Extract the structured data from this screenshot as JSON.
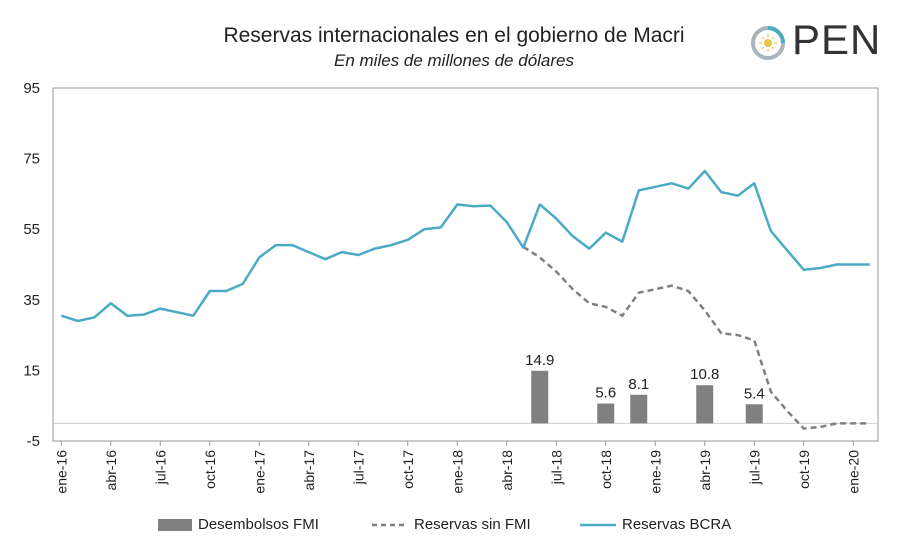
{
  "chart_data": {
    "type": "bar+line",
    "title": "Reservas internacionales en el gobierno de Macri",
    "subtitle": "En miles de millones de dólares",
    "ylim": [
      -5,
      95
    ],
    "yticks": [
      "-5",
      "15",
      "35",
      "55",
      "75",
      "95"
    ],
    "xticks": [
      "ene-16",
      "abr-16",
      "jul-16",
      "oct-16",
      "ene-17",
      "abr-17",
      "jul-17",
      "oct-17",
      "ene-18",
      "abr-18",
      "jul-18",
      "oct-18",
      "ene-19",
      "abr-19",
      "jul-19",
      "oct-19",
      "ene-20"
    ],
    "grid": "none",
    "legend_position": "bottom",
    "x_months": [
      "2016-01",
      "2016-02",
      "2016-03",
      "2016-04",
      "2016-05",
      "2016-06",
      "2016-07",
      "2016-08",
      "2016-09",
      "2016-10",
      "2016-11",
      "2016-12",
      "2017-01",
      "2017-02",
      "2017-03",
      "2017-04",
      "2017-05",
      "2017-06",
      "2017-07",
      "2017-08",
      "2017-09",
      "2017-10",
      "2017-11",
      "2017-12",
      "2018-01",
      "2018-02",
      "2018-03",
      "2018-04",
      "2018-05",
      "2018-06",
      "2018-07",
      "2018-08",
      "2018-09",
      "2018-10",
      "2018-11",
      "2018-12",
      "2019-01",
      "2019-02",
      "2019-03",
      "2019-04",
      "2019-05",
      "2019-06",
      "2019-07",
      "2019-08",
      "2019-09",
      "2019-10",
      "2019-11",
      "2019-12",
      "2020-01",
      "2020-02"
    ],
    "series": [
      {
        "name": "Desembolsos FMI",
        "kind": "bar",
        "color": "#808080",
        "points": [
          {
            "x": "2018-06",
            "value": 14.9,
            "label": "14.9"
          },
          {
            "x": "2018-10",
            "value": 5.6,
            "label": "5.6"
          },
          {
            "x": "2018-12",
            "value": 8.1,
            "label": "8.1"
          },
          {
            "x": "2019-04",
            "value": 10.8,
            "label": "10.8"
          },
          {
            "x": "2019-07",
            "value": 5.4,
            "label": "5.4"
          }
        ]
      },
      {
        "name": "Reservas sin FMI",
        "kind": "line-dashed",
        "color": "#808080",
        "x": [
          "2018-05",
          "2018-06",
          "2018-07",
          "2018-08",
          "2018-09",
          "2018-10",
          "2018-11",
          "2018-12",
          "2019-01",
          "2019-02",
          "2019-03",
          "2019-04",
          "2019-05",
          "2019-06",
          "2019-07",
          "2019-08",
          "2019-09",
          "2019-10",
          "2019-11",
          "2019-12",
          "2020-01",
          "2020-02"
        ],
        "values": [
          50,
          47,
          43,
          38,
          34,
          33,
          30.5,
          37,
          38,
          39,
          37.5,
          32,
          25.5,
          25,
          23.5,
          9,
          3.5,
          -1.5,
          -1,
          0,
          0,
          0
        ]
      },
      {
        "name": "Reservas BCRA",
        "kind": "line",
        "color": "#4aabc3",
        "values": [
          30.5,
          29,
          30,
          34,
          30.5,
          30.8,
          32.5,
          31.5,
          30.5,
          37.5,
          37.5,
          39.5,
          47,
          50.5,
          50.5,
          48.5,
          46.5,
          48.5,
          47.7,
          49.5,
          50.5,
          52,
          55,
          55.5,
          62,
          61.5,
          61.7,
          57,
          49.8,
          62,
          58,
          53,
          49.5,
          54,
          51.5,
          66,
          67,
          68,
          66.5,
          71.5,
          65.5,
          64.5,
          68,
          54.5,
          49,
          43.5,
          44,
          45,
          45,
          45
        ]
      }
    ]
  },
  "logo": {
    "text": "PEN",
    "accent_color": "#4aabc3",
    "sun_color": "#e8c547"
  }
}
